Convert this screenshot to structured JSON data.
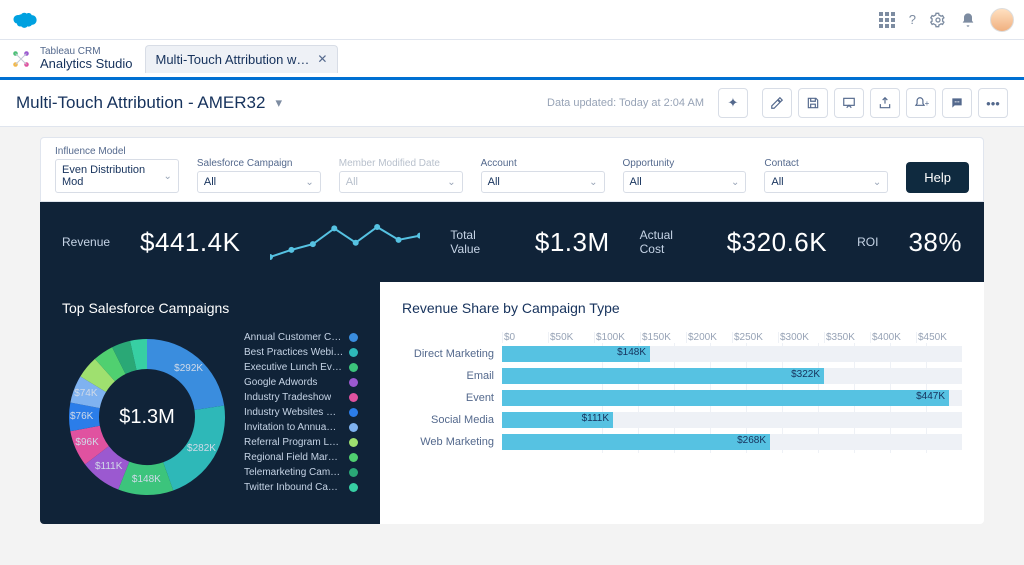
{
  "brand_color": "#00a1e0",
  "topbar": {
    "icons": [
      "apps",
      "help",
      "settings",
      "notifications"
    ]
  },
  "app": {
    "line1": "Tableau CRM",
    "line2": "Analytics Studio"
  },
  "tab": {
    "label": "Multi-Touch Attribution w…"
  },
  "header": {
    "title": "Multi-Touch Attribution - AMER32",
    "updated": "Data updated: Today at 2:04 AM"
  },
  "toolbar_icons": [
    "sparkle",
    "edit",
    "save",
    "podium",
    "share",
    "bell",
    "chat",
    "more"
  ],
  "filters": [
    {
      "label": "Influence Model",
      "value": "Even Distribution Mod",
      "muted": false
    },
    {
      "label": "Salesforce Campaign",
      "value": "All",
      "muted": false
    },
    {
      "label": "Member Modified Date",
      "value": "All",
      "muted": true
    },
    {
      "label": "Account",
      "value": "All",
      "muted": false
    },
    {
      "label": "Opportunity",
      "value": "All",
      "muted": false
    },
    {
      "label": "Contact",
      "value": "All",
      "muted": false
    }
  ],
  "help_label": "Help",
  "kpis": [
    {
      "label": "Revenue",
      "value": "$441.4K"
    },
    {
      "label": "Total Value",
      "value": "$1.3M"
    },
    {
      "label": "Actual Cost",
      "value": "$320.6K"
    },
    {
      "label": "ROI",
      "value": "38%"
    }
  ],
  "sparkline": {
    "points": [
      5,
      10,
      14,
      25,
      15,
      26,
      17,
      20
    ],
    "color": "#56c2e2"
  },
  "donut": {
    "title": "Top Salesforce Campaigns",
    "center": "$1.3M",
    "segments": [
      {
        "label": "Annual Customer C…",
        "value": 292,
        "color": "#3a8dde",
        "vlabel": "$292K"
      },
      {
        "label": "Best Practices Webi…",
        "value": 282,
        "color": "#2eb8b8",
        "vlabel": "$282K"
      },
      {
        "label": "Executive Lunch Ev…",
        "value": 148,
        "color": "#3cc47c",
        "vlabel": "$148K"
      },
      {
        "label": "Google Adwords",
        "value": 111,
        "color": "#9b59d0",
        "vlabel": "$111K"
      },
      {
        "label": "Industry Tradeshow",
        "value": 96,
        "color": "#e052a0",
        "vlabel": "$96K"
      },
      {
        "label": "Industry Websites …",
        "value": 76,
        "color": "#2b7de9",
        "vlabel": "$76K"
      },
      {
        "label": "Invitation to Annua…",
        "value": 74,
        "color": "#7fb2f0",
        "vlabel": "$74K"
      },
      {
        "label": "Referral Program L…",
        "value": 60,
        "color": "#9fe06f",
        "vlabel": ""
      },
      {
        "label": "Regional Field Mar…",
        "value": 55,
        "color": "#50d070",
        "vlabel": ""
      },
      {
        "label": "Telemarketing Cam…",
        "value": 50,
        "color": "#2aa876",
        "vlabel": ""
      },
      {
        "label": "Twitter Inbound Ca…",
        "value": 45,
        "color": "#37cfa3",
        "vlabel": ""
      }
    ]
  },
  "barchart": {
    "title": "Revenue Share by Campaign Type",
    "xmax": 460,
    "ticks": [
      "$0",
      "$50K",
      "$100K",
      "$150K",
      "$200K",
      "$250K",
      "$300K",
      "$350K",
      "$400K",
      "$450K"
    ],
    "bar_color": "#56c2e2",
    "rows": [
      {
        "label": "Direct Marketing",
        "value": 148,
        "vlabel": "$148K"
      },
      {
        "label": "Email",
        "value": 322,
        "vlabel": "$322K"
      },
      {
        "label": "Event",
        "value": 447,
        "vlabel": "$447K"
      },
      {
        "label": "Social Media",
        "value": 111,
        "vlabel": "$111K"
      },
      {
        "label": "Web Marketing",
        "value": 268,
        "vlabel": "$268K"
      }
    ]
  }
}
